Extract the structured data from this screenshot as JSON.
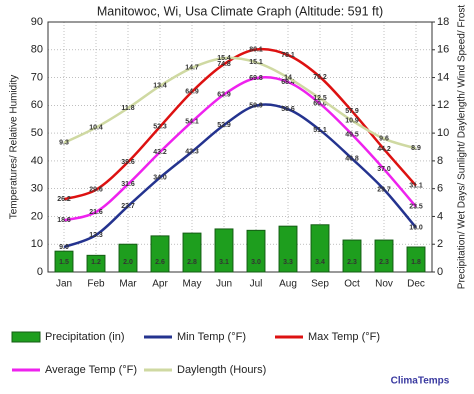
{
  "chart_data": {
    "type": "line",
    "title": "Manitowoc, Wi, Usa Climate Graph (Altitude: 591 ft)",
    "y_label": "Temperatures/ Relative Humidity",
    "y2_label": "Precipitation/ Wet Days/ Sunlight/ Daylength/ Wind Speed/ Frost",
    "watermark": "ClimaTemps",
    "categories": [
      "Jan",
      "Feb",
      "Mar",
      "Apr",
      "May",
      "Jun",
      "Jul",
      "Aug",
      "Sep",
      "Oct",
      "Nov",
      "Dec"
    ],
    "ylim": [
      0,
      90
    ],
    "yticks": [
      0,
      10,
      20,
      30,
      40,
      50,
      60,
      70,
      80,
      90
    ],
    "y2lim": [
      0,
      18
    ],
    "y2ticks": [
      0,
      2,
      4,
      6,
      8,
      10,
      12,
      14,
      16,
      18
    ],
    "grid": true,
    "series": [
      {
        "name": "Precipitation (in)",
        "type": "bar",
        "axis": "y2",
        "color": "#1e9e1e",
        "values": [
          1.5,
          1.2,
          2.0,
          2.6,
          2.8,
          3.1,
          3.0,
          3.3,
          3.4,
          2.3,
          2.3,
          1.8
        ],
        "value_labels": [
          "1.5",
          "1.2",
          "2.0",
          "2.6",
          "2.8",
          "3.1",
          "3.0",
          "3.3",
          "3.4",
          "2.3",
          "2.3",
          "1.8"
        ]
      },
      {
        "name": "Min Temp (°F)",
        "color": "#24338f",
        "values": [
          9.0,
          13.3,
          23.7,
          34.0,
          43.3,
          52.9,
          59.9,
          58.6,
          51.1,
          40.8,
          29.7,
          16.0
        ],
        "value_labels": [
          "9.0",
          "13.3",
          "23.7",
          "34.0",
          "43.3",
          "52.9",
          "59.9",
          "58.6",
          "51.1",
          "40.8",
          "29.7",
          "16.0"
        ]
      },
      {
        "name": "Max Temp (°F)",
        "color": "#dd1111",
        "values": [
          26.2,
          29.6,
          39.6,
          52.3,
          64.9,
          74.8,
          80.1,
          78.1,
          70.2,
          57.9,
          44.2,
          31.1
        ]
      },
      {
        "name": "Average Temp (°F)",
        "color": "#ee22ee",
        "values": [
          18.6,
          21.6,
          31.6,
          43.2,
          54.1,
          63.9,
          69.8,
          68.4,
          60.6,
          49.5,
          37.0,
          23.5
        ],
        "value_labels": [
          "18.6",
          "21.6",
          "31.6",
          "43.2",
          "54.1",
          "63.9",
          "69.8",
          "68.4",
          "60.6",
          "49.5",
          "37.0",
          "23.5"
        ]
      },
      {
        "name": "Daylength (Hours)",
        "axis": "y2",
        "color": "#cfd9a2",
        "values": [
          9.3,
          10.4,
          11.8,
          13.4,
          14.7,
          15.4,
          15.1,
          14.0,
          12.5,
          10.9,
          9.6,
          8.9
        ]
      }
    ]
  }
}
